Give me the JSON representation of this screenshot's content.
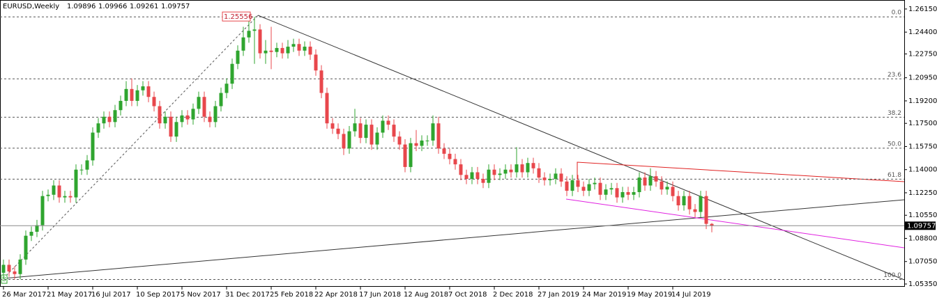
{
  "chart_data": {
    "type": "candlestick",
    "title": "EURUSD,Weekly",
    "bull_color": "#2fa52f",
    "bear_color": "#e8474c",
    "ylim": [
      1.0514,
      1.2683
    ],
    "yticks": [
      {
        "value": 1.2615,
        "label": "1.26150"
      },
      {
        "value": 1.244,
        "label": "1.24400"
      },
      {
        "value": 1.2275,
        "label": "1.22750"
      },
      {
        "value": 1.2095,
        "label": "1.20950"
      },
      {
        "value": 1.192,
        "label": "1.19200"
      },
      {
        "value": 1.175,
        "label": "1.17500"
      },
      {
        "value": 1.1575,
        "label": "1.15750"
      },
      {
        "value": 1.14,
        "label": "1.14000"
      },
      {
        "value": 1.1225,
        "label": "1.12250"
      },
      {
        "value": 1.1055,
        "label": "1.10550"
      },
      {
        "value": 1.088,
        "label": "1.08800"
      },
      {
        "value": 1.0705,
        "label": "1.07050"
      },
      {
        "value": 1.0535,
        "label": "1.05350"
      }
    ],
    "peak": 1.25556,
    "anchor_label": "8",
    "fibo": {
      "high": 1.25556,
      "low": 1.0569,
      "levels": [
        {
          "value": 0,
          "label": "0.0"
        },
        23.6,
        38.2,
        {
          "value": 50,
          "label": "50.0"
        },
        61.8,
        {
          "value": 100,
          "label": "100.0"
        }
      ]
    },
    "categories": [
      "26 Mar 2017",
      null,
      null,
      null,
      null,
      null,
      null,
      null,
      "21 May 2017",
      null,
      null,
      null,
      null,
      null,
      null,
      null,
      "16 Jul 2017",
      null,
      null,
      null,
      null,
      null,
      null,
      null,
      "10 Sep 2017",
      null,
      null,
      null,
      null,
      null,
      null,
      null,
      "5 Nov 2017",
      null,
      null,
      null,
      null,
      null,
      null,
      null,
      "31 Dec 2017",
      null,
      null,
      null,
      null,
      null,
      null,
      null,
      "25 Feb 2018",
      null,
      null,
      null,
      null,
      null,
      null,
      null,
      "22 Apr 2018",
      null,
      null,
      null,
      null,
      null,
      null,
      null,
      "17 Jun 2018",
      null,
      null,
      null,
      null,
      null,
      null,
      null,
      "12 Aug 2018",
      null,
      null,
      null,
      null,
      null,
      null,
      null,
      "7 Oct 2018",
      null,
      null,
      null,
      null,
      null,
      null,
      null,
      "2 Dec 2018",
      null,
      null,
      null,
      null,
      null,
      null,
      null,
      "27 Jan 2019",
      null,
      null,
      null,
      null,
      null,
      null,
      null,
      "24 Mar 2019",
      null,
      null,
      null,
      null,
      null,
      null,
      null,
      "19 May 2019",
      null,
      null,
      null,
      null,
      null,
      null,
      null,
      "14 Jul 2019",
      null,
      null,
      null,
      null,
      null,
      null,
      null
    ],
    "open": [
      1.062,
      1.068,
      1.063,
      1.061,
      1.072,
      1.09,
      1.093,
      1.098,
      1.12,
      1.121,
      1.128,
      1.119,
      1.12,
      1.119,
      1.14,
      1.14,
      1.147,
      1.168,
      1.175,
      1.18,
      1.176,
      1.185,
      1.192,
      1.201,
      1.192,
      1.2,
      1.203,
      1.195,
      1.188,
      1.175,
      1.18,
      1.165,
      1.176,
      1.181,
      1.178,
      1.186,
      1.195,
      1.18,
      1.176,
      1.188,
      1.198,
      1.205,
      1.22,
      1.23,
      1.24,
      1.245,
      1.246,
      1.228,
      1.23,
      1.229,
      1.232,
      1.228,
      1.233,
      1.235,
      1.23,
      1.233,
      1.227,
      1.215,
      1.198,
      1.175,
      1.171,
      1.167,
      1.156,
      1.169,
      1.175,
      1.164,
      1.174,
      1.159,
      1.168,
      1.177,
      1.174,
      1.165,
      1.159,
      1.142,
      1.16,
      1.158,
      1.162,
      1.162,
      1.175,
      1.156,
      1.152,
      1.148,
      1.144,
      1.136,
      1.133,
      1.138,
      1.133,
      1.13,
      1.14,
      1.136,
      1.137,
      1.14,
      1.138,
      1.144,
      1.138,
      1.145,
      1.141,
      1.134,
      1.132,
      1.133,
      1.137,
      1.131,
      1.124,
      1.132,
      1.127,
      1.124,
      1.129,
      1.13,
      1.121,
      1.125,
      1.126,
      1.119,
      1.123,
      1.121,
      1.123,
      1.134,
      1.128,
      1.135,
      1.131,
      1.125,
      1.127,
      1.12,
      1.113,
      1.12,
      1.11,
      1.108,
      1.12,
      1.09896
    ],
    "high": [
      1.072,
      1.072,
      1.067,
      1.076,
      1.094,
      1.097,
      1.102,
      1.124,
      1.125,
      1.132,
      1.132,
      1.124,
      1.124,
      1.144,
      1.144,
      1.151,
      1.172,
      1.179,
      1.184,
      1.184,
      1.189,
      1.196,
      1.207,
      1.209,
      1.204,
      1.207,
      1.207,
      1.199,
      1.192,
      1.184,
      1.184,
      1.18,
      1.185,
      1.185,
      1.19,
      1.199,
      1.199,
      1.184,
      1.192,
      1.202,
      1.209,
      1.224,
      1.234,
      1.248,
      1.254,
      1.25556,
      1.25,
      1.238,
      1.248,
      1.236,
      1.236,
      1.238,
      1.239,
      1.239,
      1.237,
      1.237,
      1.231,
      1.219,
      1.202,
      1.179,
      1.175,
      1.171,
      1.173,
      1.186,
      1.179,
      1.178,
      1.178,
      1.172,
      1.181,
      1.181,
      1.178,
      1.169,
      1.163,
      1.164,
      1.17,
      1.166,
      1.166,
      1.181,
      1.18,
      1.16,
      1.156,
      1.152,
      1.148,
      1.14,
      1.142,
      1.142,
      1.137,
      1.144,
      1.144,
      1.141,
      1.144,
      1.144,
      1.157,
      1.148,
      1.149,
      1.149,
      1.145,
      1.138,
      1.137,
      1.141,
      1.141,
      1.135,
      1.136,
      1.136,
      1.131,
      1.133,
      1.134,
      1.134,
      1.129,
      1.13,
      1.13,
      1.127,
      1.127,
      1.127,
      1.138,
      1.138,
      1.141,
      1.139,
      1.135,
      1.131,
      1.131,
      1.124,
      1.124,
      1.124,
      1.114,
      1.124,
      1.124,
      1.09966
    ],
    "low": [
      1.058,
      1.059,
      1.0569,
      1.057,
      1.068,
      1.086,
      1.089,
      1.094,
      1.116,
      1.117,
      1.115,
      1.115,
      1.115,
      1.115,
      1.136,
      1.136,
      1.143,
      1.164,
      1.171,
      1.172,
      1.172,
      1.181,
      1.188,
      1.188,
      1.188,
      1.196,
      1.191,
      1.184,
      1.171,
      1.171,
      1.161,
      1.161,
      1.172,
      1.174,
      1.174,
      1.182,
      1.176,
      1.172,
      1.172,
      1.184,
      1.194,
      1.201,
      1.216,
      1.226,
      1.236,
      1.22,
      1.224,
      1.22,
      1.216,
      1.225,
      1.224,
      1.224,
      1.229,
      1.226,
      1.226,
      1.223,
      1.211,
      1.194,
      1.171,
      1.167,
      1.163,
      1.151,
      1.152,
      1.165,
      1.16,
      1.16,
      1.155,
      1.155,
      1.164,
      1.17,
      1.161,
      1.155,
      1.138,
      1.138,
      1.154,
      1.154,
      1.158,
      1.158,
      1.152,
      1.148,
      1.144,
      1.14,
      1.132,
      1.129,
      1.129,
      1.129,
      1.126,
      1.126,
      1.132,
      1.132,
      1.133,
      1.134,
      1.134,
      1.134,
      1.134,
      1.137,
      1.13,
      1.128,
      1.128,
      1.129,
      1.127,
      1.12,
      1.12,
      1.123,
      1.12,
      1.12,
      1.125,
      1.117,
      1.117,
      1.121,
      1.115,
      1.115,
      1.117,
      1.117,
      1.119,
      1.124,
      1.124,
      1.127,
      1.121,
      1.121,
      1.116,
      1.109,
      1.109,
      1.106,
      1.104,
      1.104,
      1.095,
      1.09261
    ],
    "close": [
      1.068,
      1.063,
      1.061,
      1.072,
      1.09,
      1.093,
      1.098,
      1.12,
      1.121,
      1.128,
      1.119,
      1.12,
      1.119,
      1.14,
      1.14,
      1.147,
      1.168,
      1.175,
      1.18,
      1.176,
      1.185,
      1.192,
      1.201,
      1.192,
      1.2,
      1.203,
      1.195,
      1.188,
      1.175,
      1.18,
      1.165,
      1.176,
      1.181,
      1.178,
      1.186,
      1.195,
      1.18,
      1.176,
      1.188,
      1.198,
      1.205,
      1.22,
      1.23,
      1.24,
      1.245,
      1.246,
      1.228,
      1.23,
      1.229,
      1.232,
      1.228,
      1.233,
      1.235,
      1.23,
      1.233,
      1.227,
      1.215,
      1.198,
      1.175,
      1.171,
      1.167,
      1.156,
      1.169,
      1.175,
      1.164,
      1.174,
      1.159,
      1.168,
      1.177,
      1.174,
      1.165,
      1.159,
      1.142,
      1.16,
      1.158,
      1.162,
      1.162,
      1.175,
      1.156,
      1.152,
      1.148,
      1.144,
      1.136,
      1.133,
      1.138,
      1.133,
      1.13,
      1.14,
      1.136,
      1.137,
      1.14,
      1.138,
      1.144,
      1.138,
      1.145,
      1.141,
      1.134,
      1.132,
      1.133,
      1.137,
      1.131,
      1.124,
      1.132,
      1.127,
      1.124,
      1.129,
      1.13,
      1.121,
      1.125,
      1.126,
      1.119,
      1.123,
      1.121,
      1.123,
      1.134,
      1.128,
      1.135,
      1.131,
      1.125,
      1.127,
      1.12,
      1.113,
      1.12,
      1.11,
      1.108,
      1.12,
      1.099,
      1.09757
    ]
  }
}
